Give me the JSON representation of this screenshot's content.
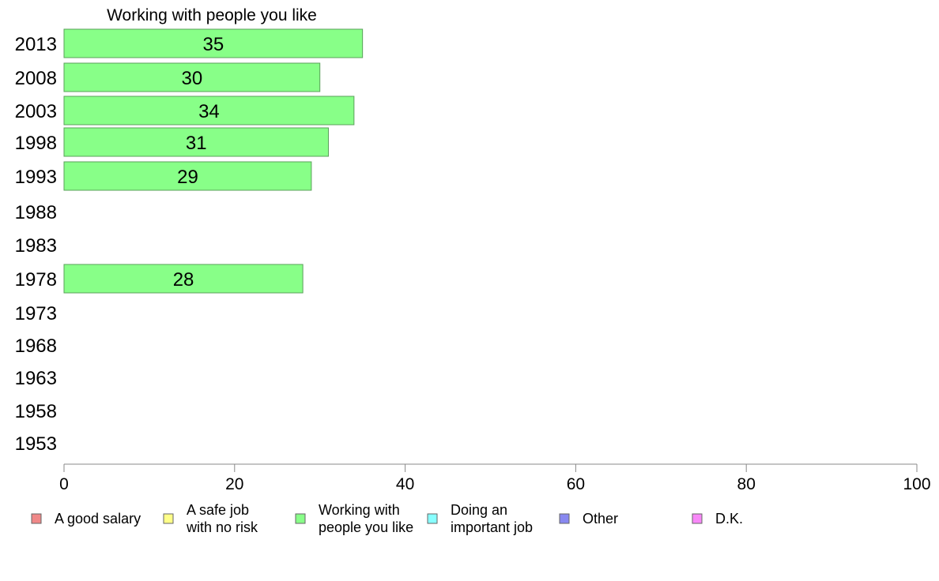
{
  "chart_data": {
    "type": "bar",
    "orientation": "horizontal",
    "title": "Working with people you like",
    "categories": [
      "2013",
      "2008",
      "2003",
      "1998",
      "1993",
      "1988",
      "1983",
      "1978",
      "1973",
      "1968",
      "1963",
      "1958",
      "1953"
    ],
    "series": [
      {
        "name": "Working with people you like",
        "color": "#88ff88",
        "values": [
          35,
          30,
          34,
          31,
          29,
          null,
          null,
          28,
          null,
          null,
          null,
          null,
          null
        ]
      }
    ],
    "xlim": [
      0,
      100
    ],
    "xticks": [
      "0",
      "20",
      "40",
      "60",
      "80",
      "100"
    ],
    "grid": false,
    "legend_placement": "bottom",
    "legend": [
      {
        "lines": [
          "A good salary"
        ],
        "color": "#f08888"
      },
      {
        "lines": [
          "A safe job",
          "with no risk"
        ],
        "color": "#ffff88"
      },
      {
        "lines": [
          "Working with",
          "people you like"
        ],
        "color": "#88ff88"
      },
      {
        "lines": [
          "Doing an",
          "important job"
        ],
        "color": "#88ffff"
      },
      {
        "lines": [
          "Other"
        ],
        "color": "#8888f0"
      },
      {
        "lines": [
          "D.K."
        ],
        "color": "#f888f8"
      }
    ]
  }
}
